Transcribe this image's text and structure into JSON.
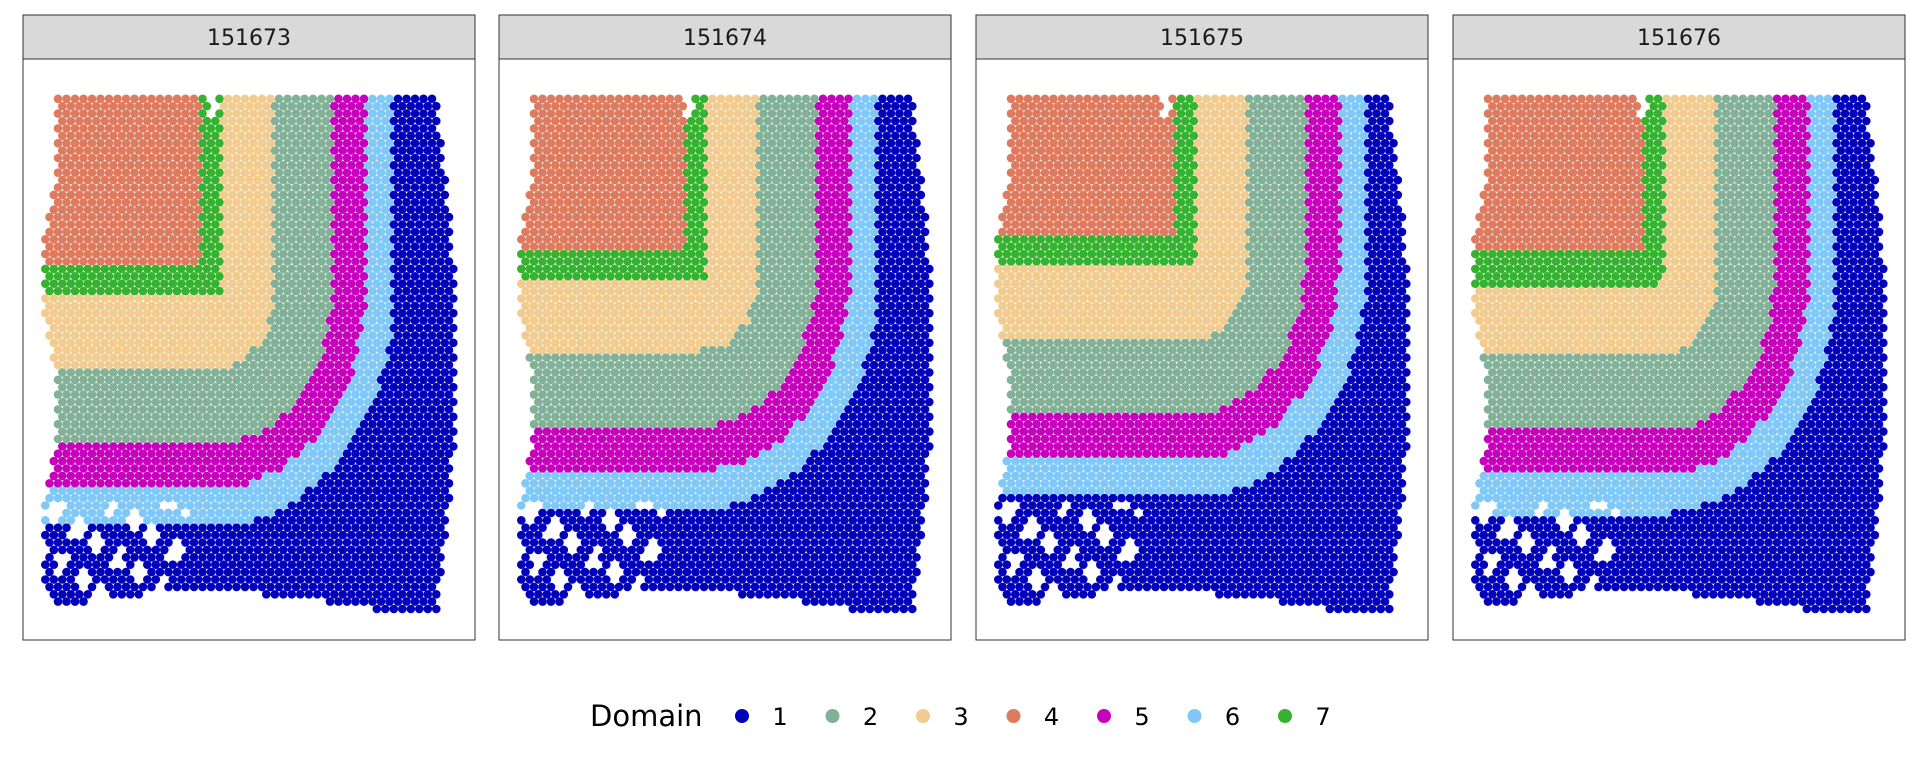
{
  "chart_data": {
    "type": "scatter",
    "description_kind": "faceted spatial domain map",
    "facets": [
      "151673",
      "151674",
      "151675",
      "151676"
    ],
    "legend": {
      "title": "Domain",
      "position": "bottom",
      "entries": [
        {
          "label": "1",
          "color": "#0000BB"
        },
        {
          "label": "2",
          "color": "#82B198"
        },
        {
          "label": "3",
          "color": "#F2CB8E"
        },
        {
          "label": "4",
          "color": "#DE7B5F"
        },
        {
          "label": "5",
          "color": "#C800BE"
        },
        {
          "label": "6",
          "color": "#80C8F8"
        },
        {
          "label": "7",
          "color": "#35B22F"
        }
      ]
    },
    "axes": "none",
    "grid": false
  }
}
